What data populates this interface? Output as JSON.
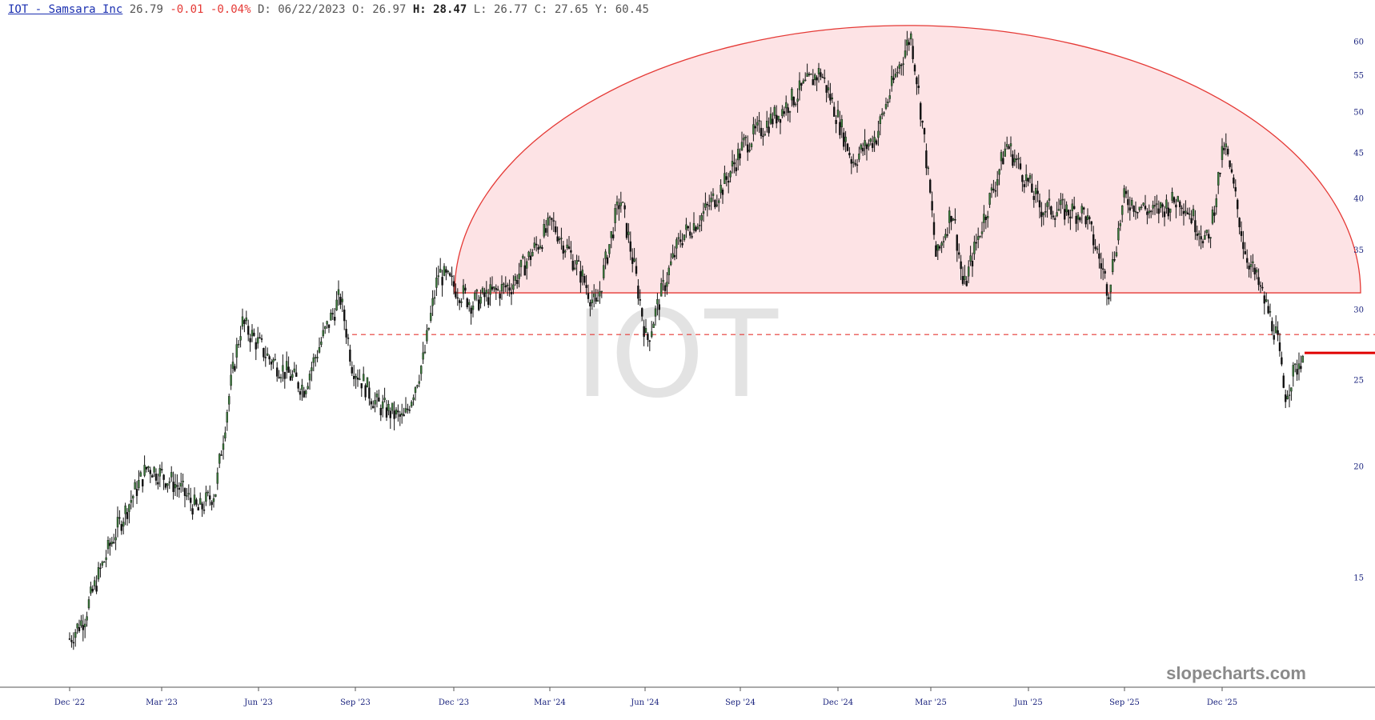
{
  "header": {
    "link": "IOT - Samsara Inc",
    "last": "26.79",
    "change": "-0.01",
    "change_pct": "-0.04%",
    "date_label": "D: 06/22/2023",
    "open_label": "O: 26.97",
    "high_label": "H: 28.47",
    "low_label": "L: 26.77",
    "close_label": "C: 27.65",
    "y_label": "Y: 60.45"
  },
  "watermark": "IOT",
  "brand": "slopecharts.com",
  "chart_data": {
    "type": "candlestick",
    "symbol": "IOT",
    "y_scale": "log",
    "ylim": [
      11.5,
      63
    ],
    "y_ticks": [
      15,
      20,
      25,
      30,
      35,
      40,
      45,
      50,
      55,
      60
    ],
    "x_ticks": [
      "Dec '22",
      "Mar '23",
      "Jun '23",
      "Sep '23",
      "Dec '23",
      "Mar '24",
      "Jun '24",
      "Sep '24",
      "Dec '24",
      "Mar '25",
      "Jun '25",
      "Sep '25",
      "Dec '25"
    ],
    "price_anchors": [
      [
        "Dec '22",
        12.8
      ],
      [
        "Jan '23",
        13.5
      ],
      [
        "Feb '23",
        16.5
      ],
      [
        "Mar '23",
        20.0
      ],
      [
        "Apr '23",
        19.0
      ],
      [
        "May '23",
        17.8
      ],
      [
        "May '23+",
        18.8
      ],
      [
        "Jun '23",
        29.0
      ],
      [
        "Jul '23",
        26.5
      ],
      [
        "Aug '23",
        24.5
      ],
      [
        "Aug '23+",
        31.0
      ],
      [
        "Sep '23",
        26.0
      ],
      [
        "Oct '23",
        23.5
      ],
      [
        "Nov '23",
        22.5
      ],
      [
        "Nov '23+",
        26.5
      ],
      [
        "Dec '23",
        33.0
      ],
      [
        "Jan '24",
        30.5
      ],
      [
        "Feb '24",
        32.0
      ],
      [
        "Mar '24",
        37.5
      ],
      [
        "Apr '24",
        33.0
      ],
      [
        "Apr '24+",
        30.0
      ],
      [
        "May '24",
        40.0
      ],
      [
        "Jun '24",
        27.5
      ],
      [
        "Jul '24",
        36.0
      ],
      [
        "Aug '24",
        38.5
      ],
      [
        "Aug '24+",
        41.5
      ],
      [
        "Sep '24",
        46.0
      ],
      [
        "Oct '24",
        50.0
      ],
      [
        "Nov '24",
        55.5
      ],
      [
        "Dec '24",
        44.0
      ],
      [
        "Jan '25",
        47.0
      ],
      [
        "Feb '25",
        61.0
      ],
      [
        "Feb '25+",
        42.0
      ],
      [
        "Mar '25",
        34.0
      ],
      [
        "Mar '25+",
        39.0
      ],
      [
        "Apr '25",
        31.5
      ],
      [
        "May '25",
        42.0
      ],
      [
        "Jun '25",
        46.0
      ],
      [
        "Jul '25",
        39.0
      ],
      [
        "Aug '25",
        38.5
      ],
      [
        "Sep '25",
        31.5
      ],
      [
        "Sep '25+",
        40.0
      ],
      [
        "Oct '25",
        38.5
      ],
      [
        "Nov '25",
        40.0
      ],
      [
        "Dec '25",
        35.5
      ],
      [
        "Dec '25+",
        46.0
      ],
      [
        "Jan '26",
        35.0
      ],
      [
        "Feb '26",
        28.0
      ],
      [
        "Feb '26+",
        24.0
      ],
      [
        "Mar '26",
        27.0
      ]
    ],
    "annotations": {
      "dome_base": 31.3,
      "dome_top": 62.5,
      "dashed_level": 28.1,
      "last_price_level": 26.8
    },
    "colors": {
      "candle_up": "#3a7a3a",
      "candle_down": "#111111",
      "dome_fill": "#fde3e5",
      "dome_stroke": "#e53935",
      "dashed_line": "#e53935",
      "last_price": "#e00000",
      "axis_text": "#1a237e"
    }
  }
}
